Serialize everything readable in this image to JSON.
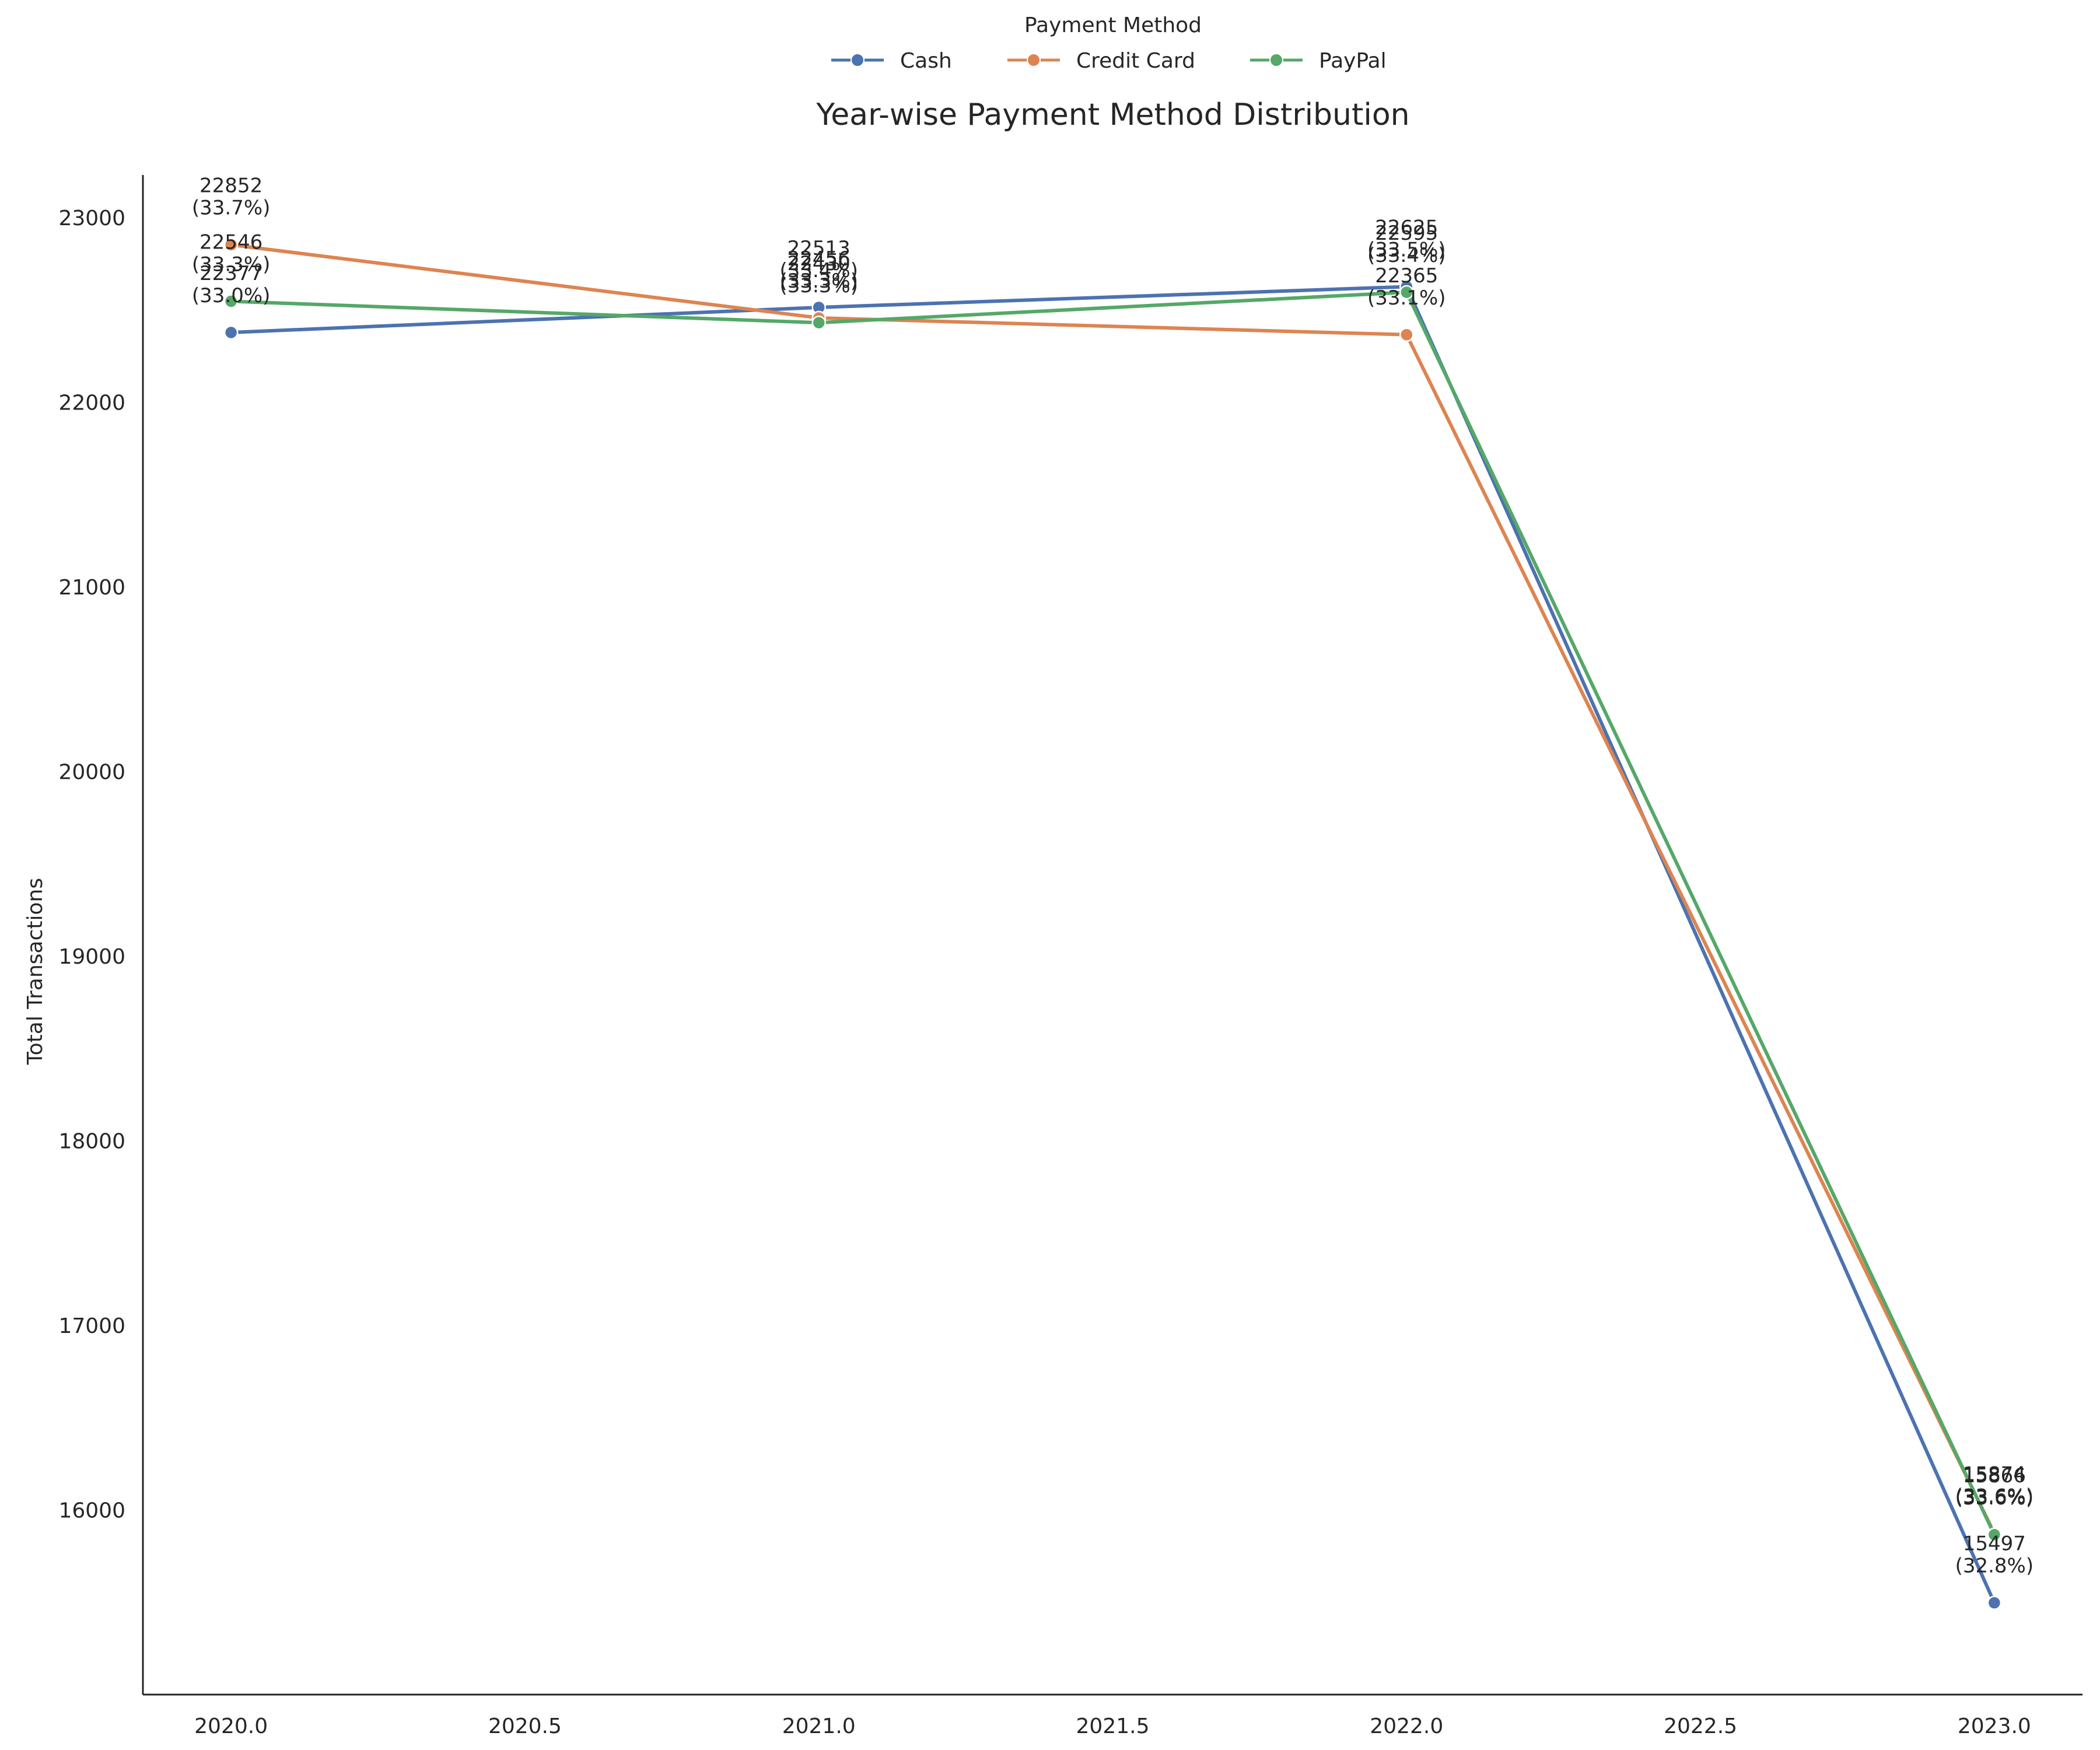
{
  "chart_data": {
    "type": "line",
    "title": "Year-wise Payment Method Distribution",
    "xlabel": "",
    "ylabel": "Total Transactions",
    "x": [
      2020,
      2021,
      2022,
      2023
    ],
    "xlim": [
      2019.85,
      2023.15
    ],
    "ylim": [
      15000,
      23230
    ],
    "xticks": [
      "2020.0",
      "2020.5",
      "2021.0",
      "2021.5",
      "2022.0",
      "2022.5",
      "2023.0"
    ],
    "yticks": [
      "16000",
      "17000",
      "18000",
      "19000",
      "20000",
      "21000",
      "22000",
      "23000"
    ],
    "grid": false,
    "legend": {
      "title": "Payment Method",
      "position": "top-center"
    },
    "series": [
      {
        "name": "Cash",
        "color": "#4c72b0",
        "values": [
          22377,
          22513,
          22625,
          15497
        ],
        "labels": [
          "22377\n(33.0%)",
          "22513\n(33.4%)",
          "22625\n(33.5%)",
          "15497\n(32.8%)"
        ]
      },
      {
        "name": "Credit Card",
        "color": "#dd8452",
        "values": [
          22852,
          22456,
          22365,
          15874
        ],
        "labels": [
          "22852\n(33.7%)",
          "22456\n(33.3%)",
          "22365\n(33.1%)",
          "15874\n(33.6%)"
        ]
      },
      {
        "name": "PayPal",
        "color": "#55a868",
        "values": [
          22546,
          22430,
          22595,
          15866
        ],
        "labels": [
          "22546\n(33.3%)",
          "22430\n(33.3%)",
          "22595\n(33.4%)",
          "15866\n(33.6%)"
        ]
      }
    ]
  }
}
